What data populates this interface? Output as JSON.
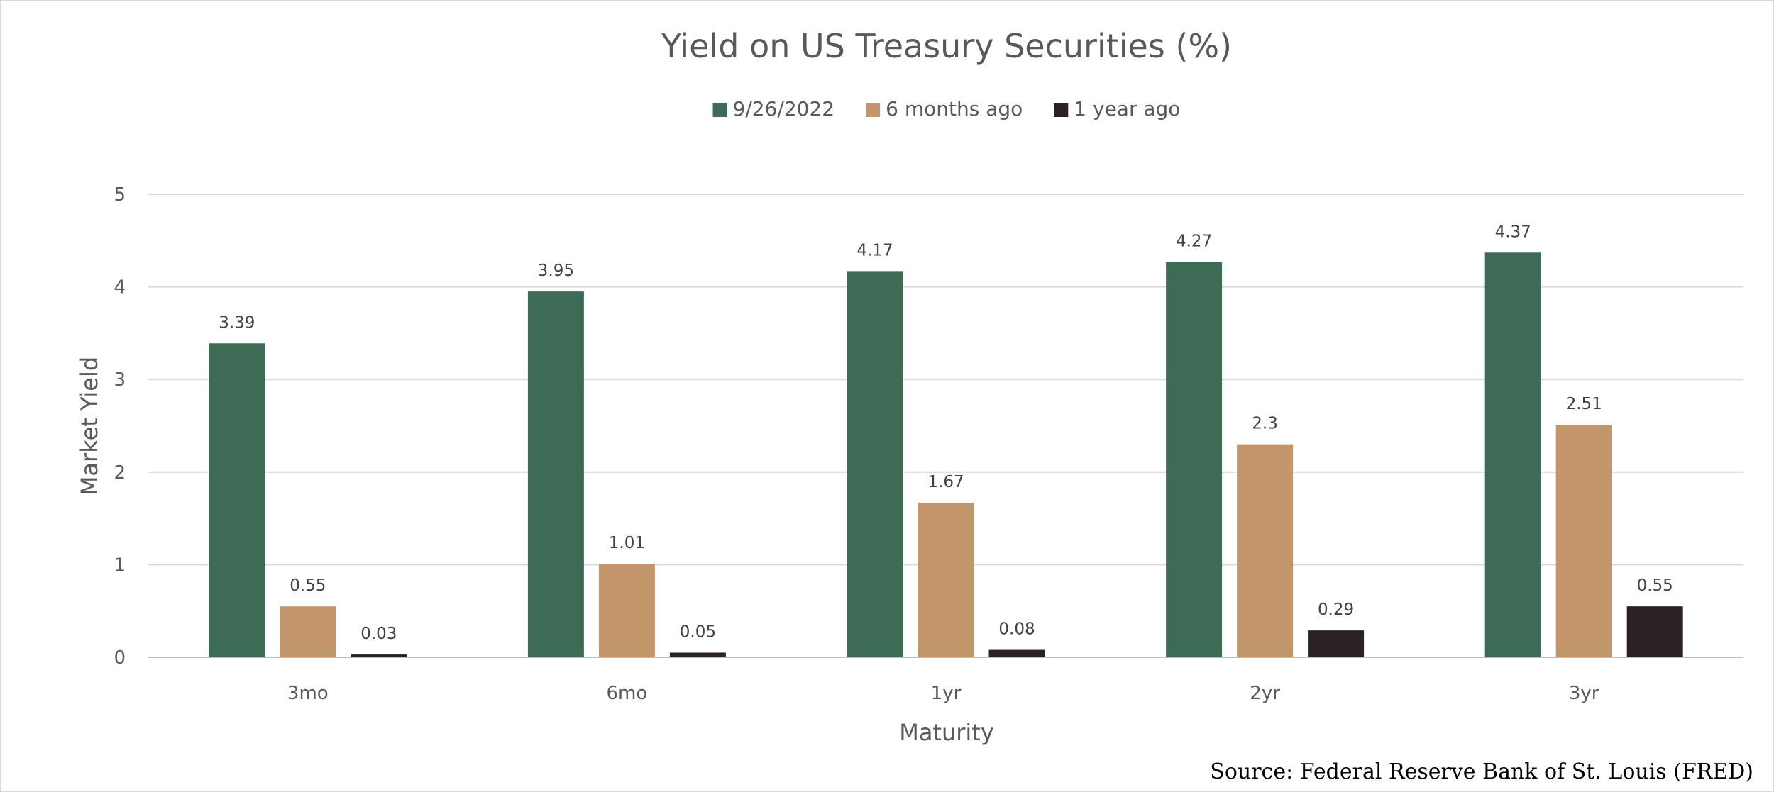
{
  "chart_data": {
    "type": "bar",
    "title": "Yield on US Treasury Securities (%)",
    "xlabel": "Maturity",
    "ylabel": "Market Yield",
    "categories": [
      "3mo",
      "6mo",
      "1yr",
      "2yr",
      "3yr"
    ],
    "series": [
      {
        "name": "9/26/2022",
        "color": "#3d6b56",
        "values": [
          3.39,
          3.95,
          4.17,
          4.27,
          4.37
        ],
        "labels": [
          "3.39",
          "3.95",
          "4.17",
          "4.27",
          "4.37"
        ]
      },
      {
        "name": "6 months ago",
        "color": "#c3956b",
        "values": [
          0.55,
          1.01,
          1.67,
          2.3,
          2.51
        ],
        "labels": [
          "0.55",
          "1.01",
          "1.67",
          "2.3",
          "2.51"
        ]
      },
      {
        "name": "1 year ago",
        "color": "#2b2226",
        "values": [
          0.03,
          0.05,
          0.08,
          0.29,
          0.55
        ],
        "labels": [
          "0.03",
          "0.05",
          "0.08",
          "0.29",
          "0.55"
        ]
      }
    ],
    "ylim": [
      0,
      5
    ],
    "yticks": [
      "0",
      "1",
      "2",
      "3",
      "4",
      "5"
    ],
    "grid": true,
    "legend": "top-center"
  },
  "source": "Source: Federal Reserve Bank of St. Louis (FRED)"
}
